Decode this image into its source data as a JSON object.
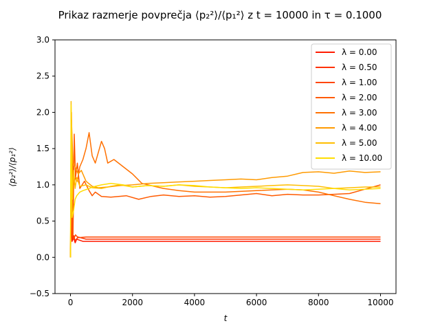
{
  "title": "Prikaz razmerje povprečja ⟨p₂²⟩/⟨p₁²⟩  z t = 10000 in τ = 0.1000",
  "chart_data": {
    "type": "line",
    "title": "Prikaz razmerje povprečja ⟨p₂²⟩/⟨p₁²⟩  z t = 10000 in τ = 0.1000",
    "xlabel": "t",
    "ylabel": "⟨p₂²⟩/⟨p₁²⟩",
    "xlim": [
      -500,
      10500
    ],
    "ylim": [
      -0.5,
      3.0
    ],
    "xticks": [
      0,
      2000,
      4000,
      6000,
      8000,
      10000
    ],
    "yticks": [
      -0.5,
      0.0,
      0.5,
      1.0,
      1.5,
      2.0,
      2.5,
      3.0
    ],
    "xtick_labels": [
      "0",
      "2000",
      "4000",
      "6000",
      "8000",
      "10000"
    ],
    "ytick_labels": [
      "−0.5",
      "0.0",
      "0.5",
      "1.0",
      "1.5",
      "2.0",
      "2.5",
      "3.0"
    ],
    "grid": false,
    "legend_position": "top-right",
    "series": [
      {
        "name": "λ = 0.00",
        "color": "#ff1a00",
        "x": [
          0,
          20,
          50,
          100,
          150,
          200,
          400,
          1000,
          3000,
          6000,
          10000
        ],
        "y": [
          0.0,
          0.6,
          0.22,
          0.27,
          0.2,
          0.25,
          0.22,
          0.22,
          0.22,
          0.22,
          0.22
        ]
      },
      {
        "name": "λ = 0.50",
        "color": "#ff3000",
        "x": [
          0,
          30,
          60,
          100,
          150,
          250,
          500,
          1000,
          3000,
          6000,
          10000
        ],
        "y": [
          0.0,
          0.8,
          0.25,
          0.3,
          0.23,
          0.28,
          0.25,
          0.25,
          0.25,
          0.25,
          0.25
        ]
      },
      {
        "name": "λ = 1.00",
        "color": "#ff4500",
        "x": [
          0,
          25,
          60,
          100,
          160,
          250,
          500,
          1000,
          3000,
          6000,
          10000
        ],
        "y": [
          0.0,
          1.0,
          0.3,
          0.25,
          0.31,
          0.27,
          0.28,
          0.28,
          0.28,
          0.28,
          0.28
        ]
      },
      {
        "name": "λ = 2.00",
        "color": "#ff5a00",
        "x": [
          0,
          30,
          80,
          120,
          160,
          220,
          300,
          450,
          600,
          700,
          800,
          1000,
          1300,
          1800,
          2200,
          2600,
          3000,
          3500,
          4000,
          4500,
          5000,
          5500,
          6000,
          6500,
          7000,
          7500,
          8000,
          8500,
          9000,
          9500,
          10000
        ],
        "y": [
          0.0,
          2.0,
          0.3,
          1.7,
          1.1,
          1.3,
          0.95,
          1.05,
          0.92,
          0.85,
          0.9,
          0.84,
          0.83,
          0.85,
          0.8,
          0.84,
          0.86,
          0.84,
          0.85,
          0.83,
          0.84,
          0.86,
          0.88,
          0.85,
          0.87,
          0.86,
          0.86,
          0.87,
          0.88,
          0.94,
          1.0
        ]
      },
      {
        "name": "λ = 3.00",
        "color": "#ff7000",
        "x": [
          0,
          40,
          100,
          160,
          220,
          300,
          400,
          500,
          600,
          700,
          800,
          900,
          1000,
          1100,
          1200,
          1400,
          1700,
          2000,
          2300,
          2700,
          3000,
          3500,
          4000,
          5000,
          6000,
          7000,
          7500,
          8000,
          8500,
          9000,
          9500,
          10000
        ],
        "y": [
          0.0,
          1.6,
          1.0,
          1.1,
          1.05,
          1.25,
          1.35,
          1.5,
          1.72,
          1.4,
          1.3,
          1.45,
          1.6,
          1.5,
          1.3,
          1.35,
          1.25,
          1.15,
          1.02,
          0.98,
          0.95,
          0.92,
          0.9,
          0.9,
          0.92,
          0.94,
          0.93,
          0.9,
          0.85,
          0.8,
          0.76,
          0.74
        ]
      },
      {
        "name": "λ = 4.00",
        "color": "#ff9a00",
        "x": [
          0,
          30,
          80,
          150,
          250,
          350,
          500,
          700,
          900,
          1200,
          1600,
          2000,
          2500,
          3000,
          3500,
          4000,
          4500,
          5000,
          5500,
          6000,
          6500,
          7000,
          7500,
          8000,
          8500,
          9000,
          9500,
          10000
        ],
        "y": [
          0.0,
          1.9,
          1.3,
          1.25,
          1.15,
          1.2,
          1.05,
          0.98,
          0.96,
          0.97,
          0.99,
          1.0,
          1.02,
          1.03,
          1.04,
          1.05,
          1.06,
          1.07,
          1.08,
          1.07,
          1.1,
          1.12,
          1.17,
          1.18,
          1.16,
          1.19,
          1.17,
          1.18
        ]
      },
      {
        "name": "λ = 5.00",
        "color": "#ffbe00",
        "x": [
          0,
          20,
          60,
          100,
          150,
          200,
          300,
          500,
          700,
          1000,
          1300,
          1600,
          2000,
          2500,
          3000,
          3500,
          4000,
          4500,
          5000,
          5500,
          6000,
          6500,
          7000,
          7500,
          8000,
          8500,
          9000,
          9500,
          10000
        ],
        "y": [
          0.0,
          2.15,
          0.8,
          1.2,
          0.95,
          1.1,
          0.98,
          1.0,
          0.96,
          0.95,
          0.98,
          1.0,
          0.97,
          0.99,
          0.98,
          1.0,
          0.98,
          0.97,
          0.96,
          0.97,
          0.98,
          0.99,
          1.0,
          0.99,
          0.98,
          0.95,
          0.96,
          0.97,
          0.97
        ]
      },
      {
        "name": "λ = 10.00",
        "color": "#ffdd00",
        "x": [
          0,
          20,
          50,
          100,
          150,
          200,
          300,
          400,
          600,
          800,
          1000,
          1300,
          1700,
          2000,
          2500,
          3000,
          3500,
          4000,
          4500,
          5000,
          5500,
          6000,
          6500,
          7000,
          7500,
          8000,
          8500,
          9000,
          9500,
          10000
        ],
        "y": [
          0.0,
          2.1,
          0.55,
          0.65,
          0.8,
          0.85,
          0.9,
          0.92,
          0.95,
          0.98,
          1.0,
          1.02,
          1.0,
          0.97,
          0.99,
          0.98,
          1.0,
          0.99,
          0.97,
          0.96,
          0.95,
          0.96,
          0.95,
          0.94,
          0.93,
          0.94,
          0.95,
          0.93,
          0.94,
          0.95
        ]
      }
    ]
  }
}
